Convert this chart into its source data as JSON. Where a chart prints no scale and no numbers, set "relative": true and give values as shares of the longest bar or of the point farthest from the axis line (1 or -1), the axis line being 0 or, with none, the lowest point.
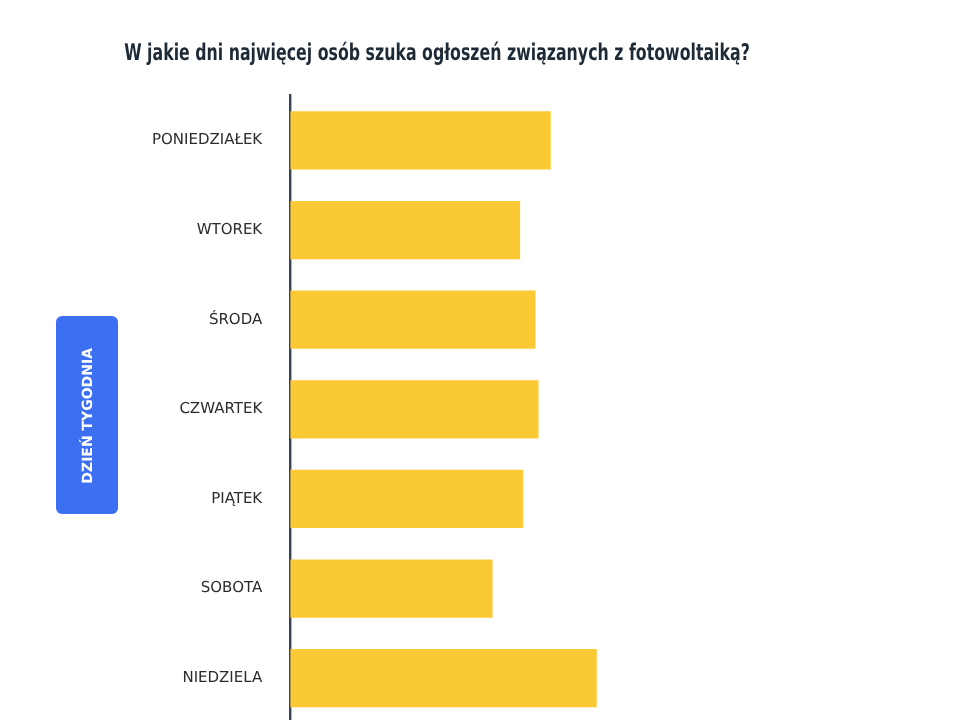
{
  "chart_data": {
    "type": "bar",
    "orientation": "horizontal",
    "relative": true,
    "title": "W jakie dni najwięcej osób szuka ogłoszeń związanych z fotowoltaiką?",
    "ylabel": "DZIEŃ TYGODNIA",
    "categories": [
      "PONIEDZIAŁEK",
      "WTOREK",
      "ŚRODA",
      "CZWARTEK",
      "PIĄTEK",
      "SOBOTA",
      "NIEDZIELA"
    ],
    "values": [
      0.85,
      0.75,
      0.8,
      0.81,
      0.76,
      0.66,
      1
    ],
    "color": "#fbc934",
    "legend": false
  }
}
